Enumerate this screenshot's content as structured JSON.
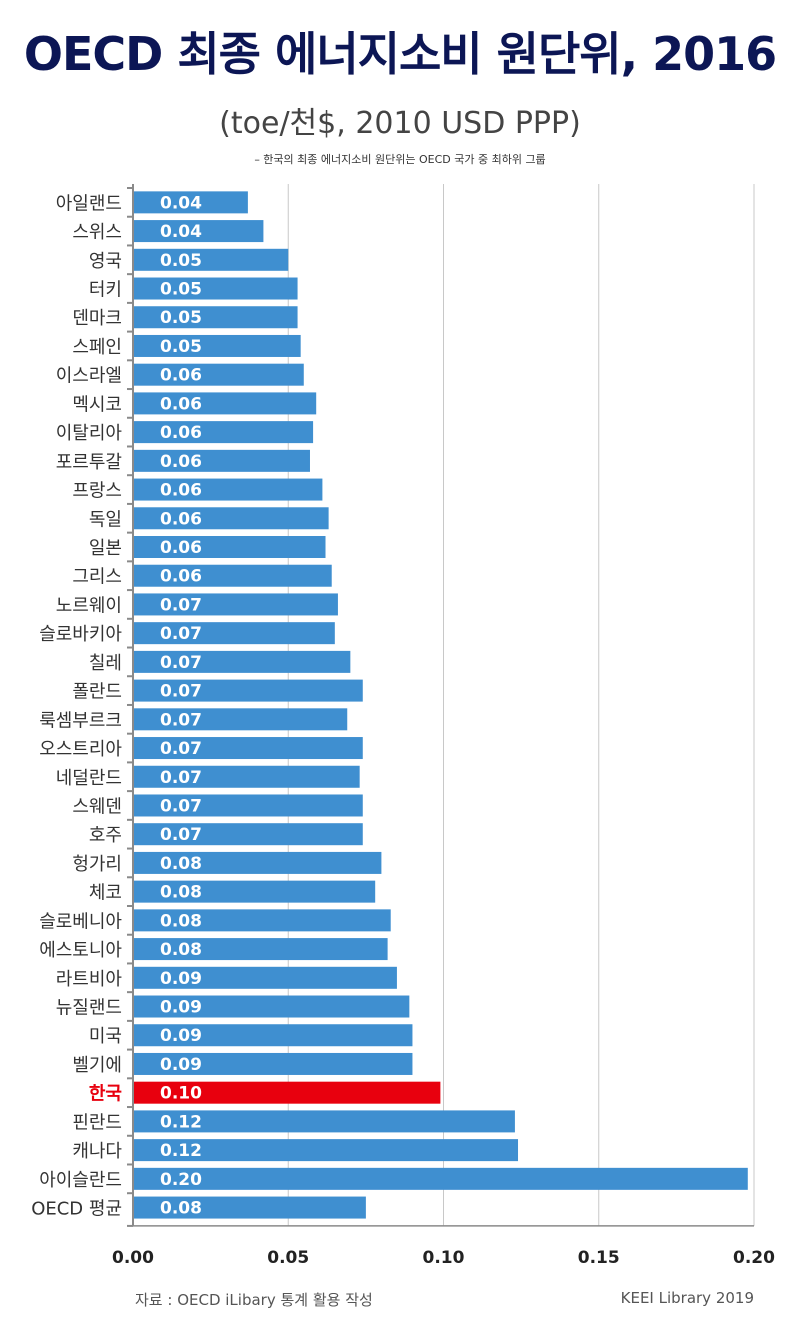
{
  "header": {
    "title": "OECD 최종 에너지소비 원단위, 2016",
    "subtitle": "(toe/천$, 2010 USD PPP)",
    "note": "– 한국의 최종 에너지소비 원단위는 OECD 국가 중 최하위 그룹"
  },
  "footer": {
    "source": "자료 : OECD iLibary  통계 활용 작성",
    "credit": "KEEI Library 2019"
  },
  "colors": {
    "bar": "#3f8fd0",
    "highlight_bar": "#e8000e",
    "highlight_label": "#e8000e",
    "title": "#0c1655",
    "grid": "#c8c8c8"
  },
  "chart_data": {
    "type": "bar",
    "orientation": "horizontal",
    "title": "OECD 최종 에너지소비 원단위, 2016",
    "subtitle": "(toe/천$, 2010 USD PPP)",
    "xlabel": "",
    "ylabel": "",
    "xlim": [
      0,
      0.2
    ],
    "x_ticks": [
      "0.00",
      "0.05",
      "0.10",
      "0.15",
      "0.20"
    ],
    "grid": true,
    "highlight": "한국",
    "categories": [
      "아일랜드",
      "스위스",
      "영국",
      "터키",
      "덴마크",
      "스페인",
      "이스라엘",
      "멕시코",
      "이탈리아",
      "포르투갈",
      "프랑스",
      "독일",
      "일본",
      "그리스",
      "노르웨이",
      "슬로바키아",
      "칠레",
      "폴란드",
      "룩셈부르크",
      "오스트리아",
      "네덜란드",
      "스웨덴",
      "호주",
      "헝가리",
      "체코",
      "슬로베니아",
      "에스토니아",
      "라트비아",
      "뉴질랜드",
      "미국",
      "벨기에",
      "한국",
      "핀란드",
      "캐나다",
      "아이슬란드",
      "OECD 평균"
    ],
    "values": [
      0.037,
      0.042,
      0.05,
      0.053,
      0.053,
      0.054,
      0.055,
      0.059,
      0.058,
      0.057,
      0.061,
      0.063,
      0.062,
      0.064,
      0.066,
      0.065,
      0.07,
      0.074,
      0.069,
      0.074,
      0.073,
      0.074,
      0.074,
      0.08,
      0.078,
      0.083,
      0.082,
      0.085,
      0.089,
      0.09,
      0.09,
      0.099,
      0.123,
      0.124,
      0.198,
      0.075
    ],
    "data_labels": [
      "0.04",
      "0.04",
      "0.05",
      "0.05",
      "0.05",
      "0.05",
      "0.06",
      "0.06",
      "0.06",
      "0.06",
      "0.06",
      "0.06",
      "0.06",
      "0.06",
      "0.07",
      "0.07",
      "0.07",
      "0.07",
      "0.07",
      "0.07",
      "0.07",
      "0.07",
      "0.07",
      "0.08",
      "0.08",
      "0.08",
      "0.08",
      "0.09",
      "0.09",
      "0.09",
      "0.09",
      "0.10",
      "0.12",
      "0.12",
      "0.20",
      "0.08"
    ]
  }
}
